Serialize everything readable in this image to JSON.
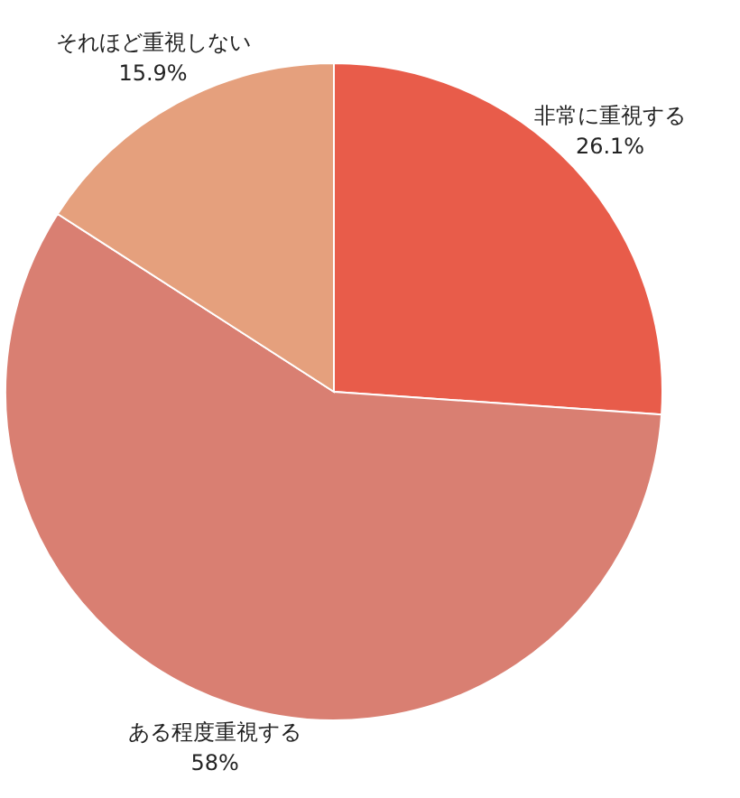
{
  "chart_data": {
    "type": "pie",
    "categories": [
      "非常に重視する",
      "ある程度重視する",
      "それほど重視しない"
    ],
    "values": [
      26.1,
      58,
      15.9
    ],
    "value_labels": [
      "26.1%",
      "58%",
      "15.9%"
    ],
    "colors": [
      "#e85c4a",
      "#d97f72",
      "#e5a07d"
    ]
  }
}
